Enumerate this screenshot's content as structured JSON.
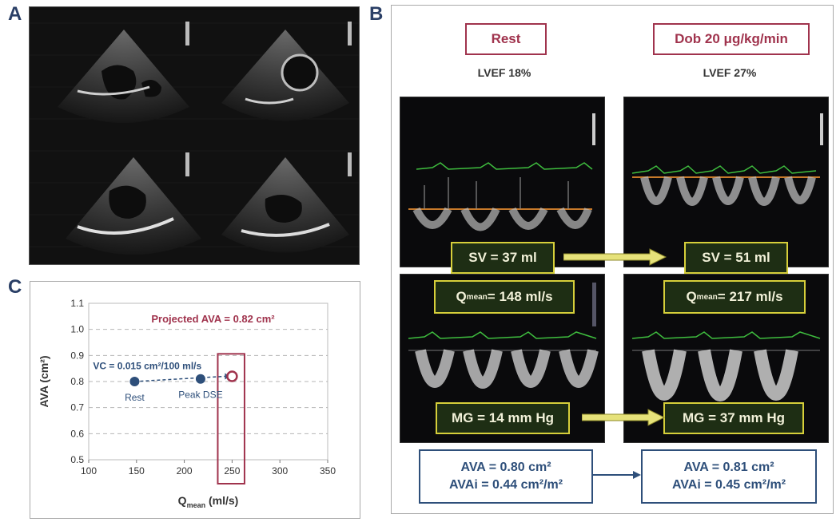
{
  "panel_labels": {
    "a": "A",
    "b": "B",
    "c": "C"
  },
  "panel_b": {
    "rest_label": "Rest",
    "dob_label": "Dob 20 μg/kg/min",
    "rest_lvef": "LVEF 18%",
    "dob_lvef": "LVEF 27%",
    "sv_rest": "SV = 37 ml",
    "sv_dob": "SV = 51 ml",
    "q_prefix": "Q",
    "q_sub": "mean",
    "q_rest_value": " = 148 ml/s",
    "q_dob_value": " = 217 ml/s",
    "mg_rest": "MG = 14 mm Hg",
    "mg_dob": "MG = 37 mm Hg",
    "ava_rest_line1": "AVA = 0.80 cm²",
    "ava_rest_line2": "AVAi = 0.44 cm²/m²",
    "ava_dob_line1": "AVA = 0.81 cm²",
    "ava_dob_line2": "AVAi = 0.45 cm²/m²"
  },
  "colors": {
    "navy": "#2e4f7a",
    "maroon": "#a0334d",
    "yellow_border": "#d6cf3a",
    "arrow_fill": "#e6e27a",
    "trace_green": "#3fbf3f"
  },
  "chart_data": {
    "type": "scatter",
    "title": "Projected AVA = 0.82 cm²",
    "annotation": "VC = 0.015 cm²/100 ml/s",
    "xlabel_main": "Q",
    "xlabel_sub": "mean",
    "xlabel_unit": " (ml/s)",
    "ylabel": "AVA (cm²)",
    "xlim": [
      100,
      350
    ],
    "ylim": [
      0.5,
      1.1
    ],
    "xticks": [
      100,
      150,
      200,
      250,
      300,
      350
    ],
    "yticks": [
      0.5,
      0.6,
      0.7,
      0.8,
      0.9,
      1.0,
      1.1
    ],
    "ytick_labels": [
      "0.5",
      "0.6",
      "0.7",
      "0.8",
      "0.9",
      "1.0",
      "1.1"
    ],
    "grid": "horizontal dashed",
    "points": [
      {
        "label": "Rest",
        "x": 148,
        "y": 0.8,
        "style": "filled"
      },
      {
        "label": "Peak DSE",
        "x": 217,
        "y": 0.81,
        "style": "filled"
      },
      {
        "label": "",
        "x": 250,
        "y": 0.82,
        "style": "open"
      }
    ],
    "highlight_box_x": [
      235,
      263
    ]
  }
}
